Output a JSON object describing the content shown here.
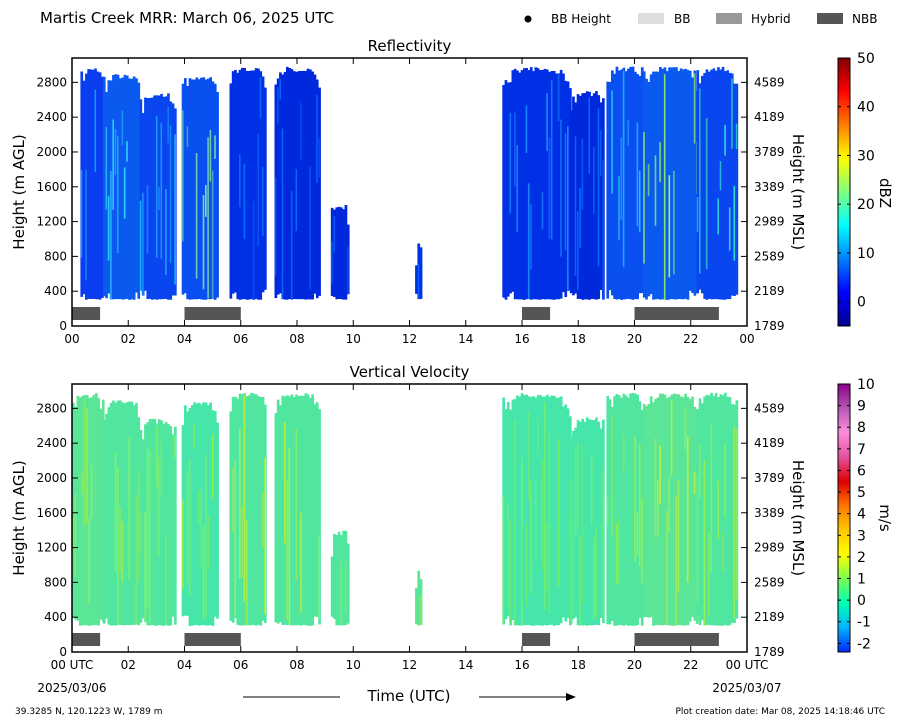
{
  "page_title": "Martis Creek MRR:  March 06, 2025 UTC",
  "legend": {
    "items": [
      {
        "label": "BB Height",
        "color": "#000000",
        "symbol": "dot"
      },
      {
        "label": "BB",
        "color": "#dddddd",
        "symbol": "box"
      },
      {
        "label": "Hybrid",
        "color": "#999999",
        "symbol": "box"
      },
      {
        "label": "NBB",
        "color": "#555555",
        "symbol": "box"
      }
    ]
  },
  "footer": {
    "location": "39.3285 N, 120.1223 W, 1789 m",
    "creation": "Plot creation date: Mar 08, 2025 14:18:46 UTC",
    "time_axis_label": "Time (UTC)",
    "start_date": "2025/03/06",
    "end_date": "2025/03/07"
  },
  "chart_data": [
    {
      "type": "heatmap",
      "title": "Reflectivity",
      "ylabel": "Height (m AGL)",
      "y2label": "Height (m MSL)",
      "x_ticks": [
        "00",
        "02",
        "04",
        "06",
        "08",
        "10",
        "12",
        "14",
        "16",
        "18",
        "20",
        "22",
        "00"
      ],
      "xlim": [
        0,
        24
      ],
      "y_ticks": [
        0,
        400,
        800,
        1200,
        1600,
        2000,
        2400,
        2800
      ],
      "y2_ticks": [
        1789,
        2189,
        2589,
        2989,
        3389,
        3789,
        4189,
        4589
      ],
      "ylim": [
        0,
        3080
      ],
      "colorbar": {
        "label": "dBZ",
        "ticks": [
          0,
          10,
          20,
          30,
          40,
          50
        ],
        "range": [
          -5,
          50
        ],
        "colors": [
          "#00008f",
          "#0000ff",
          "#007fff",
          "#00ffff",
          "#7fff7f",
          "#ffff00",
          "#ff7f00",
          "#ff0000",
          "#7f0000"
        ]
      },
      "precip_segments": [
        {
          "start": 0.3,
          "end": 1.1,
          "top": 2980,
          "base": "#0a3cf0",
          "accent": "#14c8ff"
        },
        {
          "start": 1.1,
          "end": 2.4,
          "top": 2900,
          "base": "#0a5af0",
          "accent": "#32dcff"
        },
        {
          "start": 2.4,
          "end": 3.7,
          "top": 2680,
          "base": "#0a46f0",
          "accent": "#20b4ff"
        },
        {
          "start": 3.9,
          "end": 5.2,
          "top": 2880,
          "base": "#0a50f0",
          "accent": "#8cf0a0"
        },
        {
          "start": 5.6,
          "end": 6.9,
          "top": 2980,
          "base": "#0030e6",
          "accent": "#0a78ff"
        },
        {
          "start": 7.2,
          "end": 8.8,
          "top": 2980,
          "base": "#0028dc",
          "accent": "#0a6eff"
        },
        {
          "start": 9.2,
          "end": 9.8,
          "top": 1400,
          "base": "#0028dc",
          "accent": "#0a6eff"
        },
        {
          "start": 12.2,
          "end": 12.4,
          "top": 950,
          "base": "#0030e6",
          "accent": "#0a6eff"
        },
        {
          "start": 15.3,
          "end": 17.7,
          "top": 2980,
          "base": "#0030e6",
          "accent": "#1e96ff"
        },
        {
          "start": 17.7,
          "end": 18.9,
          "top": 2700,
          "base": "#0028dc",
          "accent": "#0a78ff"
        },
        {
          "start": 19.0,
          "end": 20.3,
          "top": 2980,
          "base": "#0a4ff0",
          "accent": "#28c8ff"
        },
        {
          "start": 20.3,
          "end": 22.2,
          "top": 2980,
          "base": "#0a5af0",
          "accent": "#a0ff5a"
        },
        {
          "start": 22.2,
          "end": 23.6,
          "top": 2980,
          "base": "#0a46f0",
          "accent": "#32e6c8"
        }
      ],
      "bright_bands": [
        {
          "type": "NBB",
          "start": 0.0,
          "end": 1.0
        },
        {
          "type": "NBB",
          "start": 4.0,
          "end": 6.0
        },
        {
          "type": "NBB",
          "start": 16.0,
          "end": 17.0
        },
        {
          "type": "NBB",
          "start": 20.0,
          "end": 23.0
        }
      ]
    },
    {
      "type": "heatmap",
      "title": "Vertical Velocity",
      "ylabel": "Height (m AGL)",
      "y2label": "Height (m MSL)",
      "x_ticks": [
        "00 UTC",
        "02",
        "04",
        "06",
        "08",
        "10",
        "12",
        "14",
        "16",
        "18",
        "20",
        "22",
        "00 UTC"
      ],
      "xlim": [
        0,
        24
      ],
      "y_ticks": [
        0,
        400,
        800,
        1200,
        1600,
        2000,
        2400,
        2800
      ],
      "y2_ticks": [
        1789,
        2189,
        2589,
        2989,
        3389,
        3789,
        4189,
        4589
      ],
      "ylim": [
        0,
        3080
      ],
      "colorbar": {
        "label": "m/s",
        "ticks": [
          -2,
          -1,
          0,
          1,
          2,
          3,
          4,
          5,
          6,
          7,
          8,
          9,
          10
        ],
        "range": [
          -2.4,
          10
        ],
        "colors": [
          "#0028ff",
          "#00b4ff",
          "#00ffb4",
          "#78ff50",
          "#ffff00",
          "#ffc800",
          "#ff7800",
          "#dc0000",
          "#e650a0",
          "#ff8cdc",
          "#b45ab4",
          "#8c008c"
        ]
      },
      "precip_segments": [
        {
          "start": 0.0,
          "end": 1.1,
          "top": 2980,
          "base": "#5ae696",
          "accent": "#96f050"
        },
        {
          "start": 1.1,
          "end": 2.4,
          "top": 2900,
          "base": "#50e6a0",
          "accent": "#a0f046"
        },
        {
          "start": 2.4,
          "end": 3.7,
          "top": 2680,
          "base": "#50e6a0",
          "accent": "#8cf05a"
        },
        {
          "start": 3.9,
          "end": 5.2,
          "top": 2880,
          "base": "#46e6aa",
          "accent": "#96f046"
        },
        {
          "start": 5.6,
          "end": 6.9,
          "top": 2980,
          "base": "#50e6a0",
          "accent": "#c8f032"
        },
        {
          "start": 7.2,
          "end": 8.8,
          "top": 2980,
          "base": "#50e6a0",
          "accent": "#b4f03c"
        },
        {
          "start": 9.2,
          "end": 9.8,
          "top": 1400,
          "base": "#50e6a0",
          "accent": "#a0f046"
        },
        {
          "start": 12.2,
          "end": 12.4,
          "top": 950,
          "base": "#5ae696",
          "accent": "#96f050"
        },
        {
          "start": 15.3,
          "end": 17.7,
          "top": 2980,
          "base": "#46e6aa",
          "accent": "#78f064"
        },
        {
          "start": 17.7,
          "end": 18.9,
          "top": 2700,
          "base": "#46e6aa",
          "accent": "#78f064"
        },
        {
          "start": 19.0,
          "end": 20.3,
          "top": 2980,
          "base": "#50e6a0",
          "accent": "#a0f046"
        },
        {
          "start": 20.3,
          "end": 22.2,
          "top": 2980,
          "base": "#5ae696",
          "accent": "#d2f032"
        },
        {
          "start": 22.2,
          "end": 23.6,
          "top": 2980,
          "base": "#50e6a0",
          "accent": "#96f050"
        }
      ],
      "bright_bands": [
        {
          "type": "NBB",
          "start": 0.0,
          "end": 1.0
        },
        {
          "type": "NBB",
          "start": 4.0,
          "end": 6.0
        },
        {
          "type": "NBB",
          "start": 16.0,
          "end": 17.0
        },
        {
          "type": "NBB",
          "start": 20.0,
          "end": 23.0
        }
      ]
    }
  ]
}
